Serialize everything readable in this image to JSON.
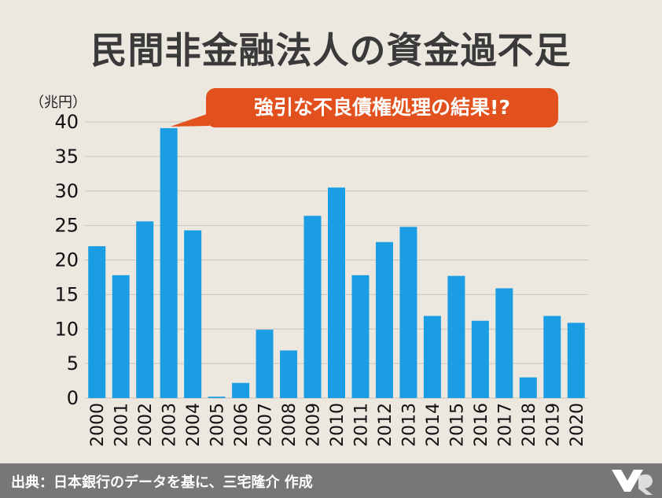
{
  "title": "民間非金融法人の資金過不足",
  "unit": "（兆円）",
  "callout": "強引な不良債権処理の結果!?",
  "footer": {
    "source": "出典：日本銀行のデータを基に、三宅隆介 作成"
  },
  "colors": {
    "background": "#ece8e0",
    "bar": "#1a9de3",
    "callout": "#e2511d",
    "footer": "#777777",
    "grid": "#c9c4bb"
  },
  "chart_data": {
    "type": "bar",
    "categories": [
      "2000",
      "2001",
      "2002",
      "2003",
      "2004",
      "2005",
      "2006",
      "2007",
      "2008",
      "2009",
      "2010",
      "2011",
      "2012",
      "2013",
      "2014",
      "2015",
      "2016",
      "2017",
      "2018",
      "2019",
      "2020"
    ],
    "values": [
      22,
      17.8,
      25.6,
      39.1,
      24.3,
      0.2,
      2.2,
      9.9,
      6.9,
      26.4,
      30.5,
      17.8,
      22.6,
      24.8,
      11.9,
      17.7,
      11.2,
      15.9,
      3.0,
      11.9,
      10.9
    ],
    "ylim": [
      0,
      40
    ],
    "yticks": [
      0,
      5,
      10,
      15,
      20,
      25,
      30,
      35,
      40
    ],
    "grid": true,
    "title": "民間非金融法人の資金過不足",
    "ylabel": "（兆円）",
    "xlabel": ""
  }
}
